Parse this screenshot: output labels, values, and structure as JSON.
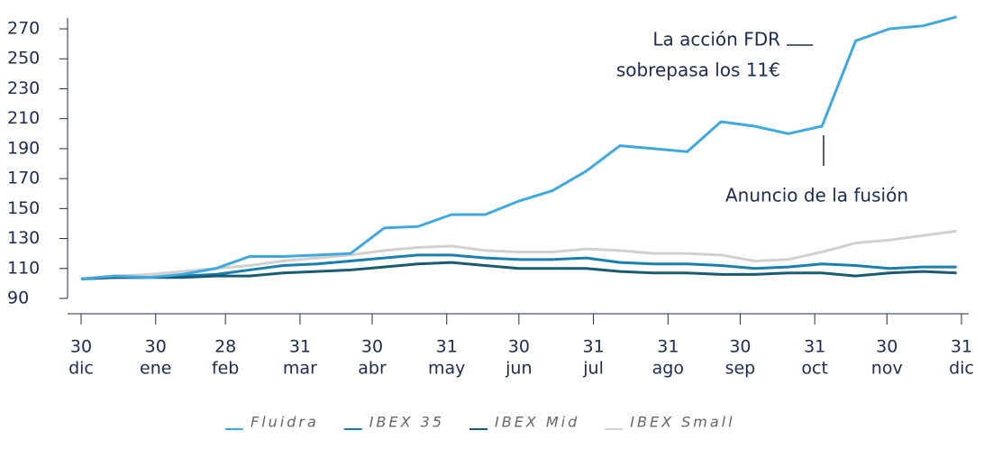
{
  "chart_data": {
    "type": "line",
    "x": [
      0,
      14,
      28,
      42,
      56,
      70,
      84,
      98,
      112,
      126,
      140,
      154,
      168,
      182,
      196,
      210,
      224,
      238,
      252,
      266,
      280,
      294,
      308,
      322,
      336,
      350,
      364
    ],
    "series": [
      {
        "name": "Fluidra",
        "color": "#3fa9df",
        "values": [
          103,
          105,
          104,
          106,
          110,
          118,
          118,
          119,
          120,
          137,
          138,
          146,
          146,
          155,
          162,
          175,
          192,
          190,
          188,
          208,
          205,
          200,
          205,
          262,
          270,
          272,
          278
        ]
      },
      {
        "name": "IBEX 35",
        "color": "#1a7fae",
        "values": [
          103,
          104,
          104,
          105,
          106,
          109,
          112,
          113,
          115,
          117,
          119,
          119,
          117,
          116,
          116,
          117,
          114,
          113,
          113,
          112,
          110,
          111,
          113,
          112,
          110,
          111,
          111
        ]
      },
      {
        "name": "IBEX Mid",
        "color": "#1b5a73",
        "values": [
          103,
          104,
          104,
          104,
          105,
          105,
          107,
          108,
          109,
          111,
          113,
          114,
          112,
          110,
          110,
          110,
          108,
          107,
          107,
          106,
          106,
          107,
          107,
          105,
          107,
          108,
          107
        ]
      },
      {
        "name": "IBEX Small",
        "color": "#d0d0d0",
        "values": [
          103,
          105,
          106,
          108,
          110,
          112,
          115,
          117,
          119,
          122,
          124,
          125,
          122,
          121,
          121,
          123,
          122,
          120,
          120,
          119,
          115,
          116,
          121,
          127,
          129,
          132,
          135
        ]
      }
    ],
    "xlim": [
      0,
      366
    ],
    "xticks": [
      {
        "value": 0,
        "label": "30"
      },
      {
        "value": 31,
        "label": "30"
      },
      {
        "value": 60,
        "label": "28"
      },
      {
        "value": 91,
        "label": "31"
      },
      {
        "value": 121,
        "label": "30"
      },
      {
        "value": 152,
        "label": "31"
      },
      {
        "value": 182,
        "label": "30"
      },
      {
        "value": 213,
        "label": "31"
      },
      {
        "value": 244,
        "label": "31"
      },
      {
        "value": 274,
        "label": "30"
      },
      {
        "value": 305,
        "label": "31"
      },
      {
        "value": 335,
        "label": "30"
      },
      {
        "value": 366,
        "label": "31"
      }
    ],
    "xtick_months": [
      "dic",
      "ene",
      "feb",
      "mar",
      "abr",
      "may",
      "jun",
      "jul",
      "ago",
      "sep",
      "oct",
      "nov",
      "dic"
    ],
    "ylim": [
      90,
      280
    ],
    "yticks": [
      90,
      110,
      130,
      150,
      170,
      190,
      210,
      230,
      250,
      270
    ],
    "annotations": [
      "La acción FDR",
      "sobrepasa los 11€",
      "Anuncio de la fusión"
    ],
    "legend": "bottom"
  }
}
